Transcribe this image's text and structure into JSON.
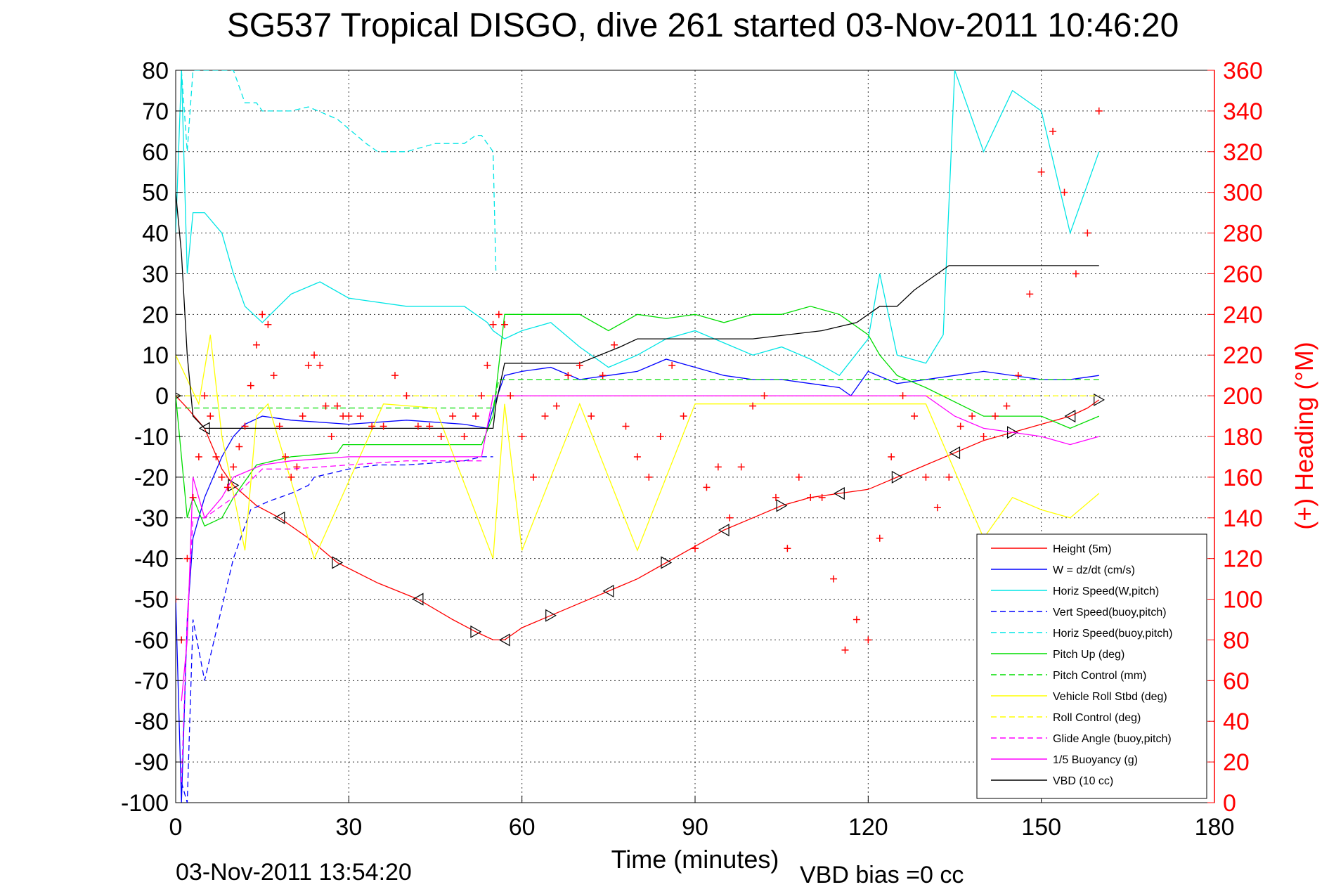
{
  "chart_data": {
    "type": "line",
    "title": "SG537 Tropical DISGO, dive 261 started 03-Nov-2011 10:46:20",
    "xlabel": "Time (minutes)",
    "ylabel_right": "(+) Heading (°M)",
    "footer_left": "03-Nov-2011 13:54:20",
    "footer_right": "VBD bias =0 cc",
    "xlim": [
      0,
      180
    ],
    "ylim": [
      -100,
      80
    ],
    "y2lim": [
      0,
      360
    ],
    "xticks": [
      "0",
      "30",
      "60",
      "90",
      "120",
      "150",
      "180"
    ],
    "yticks": [
      "80",
      "70",
      "60",
      "50",
      "40",
      "30",
      "20",
      "10",
      "0",
      "-10",
      "-20",
      "-30",
      "-40",
      "-50",
      "-60",
      "-70",
      "-80",
      "-90",
      "-100"
    ],
    "y2ticks": [
      "360",
      "340",
      "320",
      "300",
      "280",
      "260",
      "240",
      "220",
      "200",
      "180",
      "160",
      "140",
      "120",
      "100",
      "80",
      "60",
      "40",
      "20",
      "0"
    ],
    "grid": true,
    "legend_position": "bottom-right",
    "colors": {
      "height": "#ff0000",
      "w": "#0000ff",
      "horiz_w": "#00e5e5",
      "vert_buoy": "#0000ff",
      "horiz_buoy": "#00e5e5",
      "pitch_up": "#00dd00",
      "pitch_ctrl": "#00dd00",
      "roll": "#ffff00",
      "roll_ctrl": "#ffff00",
      "glide": "#ff00ff",
      "buoy": "#ff00ff",
      "vbd": "#000000",
      "heading": "#ff0000"
    },
    "series": [
      {
        "name": "Height (5m)",
        "key": "height",
        "style": "solid",
        "x": [
          0,
          2,
          5,
          8,
          10,
          14,
          18,
          23,
          28,
          35,
          42,
          48,
          52,
          55,
          57,
          60,
          65,
          70,
          75,
          80,
          85,
          90,
          95,
          100,
          105,
          110,
          115,
          120,
          125,
          130,
          135,
          140,
          145,
          150,
          155,
          158,
          160
        ],
        "y": [
          0,
          -3,
          -8,
          -18,
          -22,
          -27,
          -30,
          -35,
          -41,
          -46,
          -50,
          -55,
          -58,
          -60,
          -60,
          -57,
          -54,
          -51,
          -48,
          -45,
          -41,
          -37,
          -33,
          -30,
          -27,
          -25,
          -24,
          -23,
          -20,
          -17,
          -14,
          -11,
          -9,
          -7,
          -5,
          -3,
          -1
        ]
      },
      {
        "name": "W = dz/dt (cm/s)",
        "key": "w",
        "style": "solid",
        "x": [
          0,
          1,
          2,
          3,
          5,
          8,
          10,
          12,
          15,
          20,
          30,
          40,
          50,
          54,
          55,
          57,
          60,
          65,
          70,
          75,
          80,
          85,
          90,
          95,
          100,
          105,
          110,
          115,
          117,
          120,
          125,
          130,
          135,
          140,
          150,
          155,
          160
        ],
        "y": [
          -50,
          -100,
          -55,
          -35,
          -25,
          -15,
          -10,
          -7,
          -5,
          -6,
          -7,
          -6,
          -7,
          -8,
          -3,
          5,
          6,
          7,
          4,
          5,
          6,
          9,
          7,
          5,
          4,
          4,
          3,
          2,
          0,
          6,
          3,
          4,
          5,
          6,
          4,
          4,
          5
        ]
      },
      {
        "name": "Horiz Speed(W,pitch)",
        "key": "horiz_w",
        "style": "solid",
        "x": [
          0,
          1,
          2,
          3,
          5,
          8,
          10,
          12,
          15,
          20,
          25,
          30,
          40,
          50,
          54,
          55,
          57,
          60,
          65,
          70,
          75,
          80,
          85,
          90,
          95,
          100,
          105,
          110,
          115,
          120,
          122,
          125,
          130,
          133,
          135,
          140,
          145,
          150,
          155,
          160
        ],
        "y": [
          40,
          80,
          30,
          45,
          45,
          40,
          30,
          22,
          18,
          25,
          28,
          24,
          22,
          22,
          18,
          16,
          14,
          16,
          18,
          12,
          7,
          10,
          14,
          16,
          13,
          10,
          12,
          9,
          5,
          14,
          30,
          10,
          8,
          15,
          80,
          60,
          75,
          70,
          40,
          60
        ]
      },
      {
        "name": "Vert Speed(buoy,pitch)",
        "key": "vert_buoy",
        "style": "dashed",
        "x": [
          1,
          2,
          3,
          5,
          8,
          10,
          13,
          16,
          20,
          23,
          24,
          30,
          35,
          40,
          50,
          53,
          55
        ],
        "y": [
          -95,
          -100,
          -55,
          -70,
          -52,
          -40,
          -28,
          -26,
          -24,
          -22,
          -20,
          -18,
          -17,
          -17,
          -16,
          -15,
          -15
        ]
      },
      {
        "name": "Horiz Speed(buoy,pitch)",
        "key": "horiz_buoy",
        "style": "dashed",
        "x": [
          1,
          2,
          3,
          10,
          12,
          14,
          15,
          20,
          23,
          28,
          33,
          35,
          40,
          45,
          50,
          52,
          53,
          55,
          55.5
        ],
        "y": [
          80,
          60,
          80,
          80,
          72,
          72,
          70,
          70,
          71,
          68,
          62,
          60,
          60,
          62,
          62,
          64,
          64,
          60,
          30
        ]
      },
      {
        "name": "Pitch Up (deg)",
        "key": "pitch_up",
        "style": "solid",
        "x": [
          0,
          2,
          3,
          5,
          8,
          10,
          14,
          20,
          28,
          29,
          35,
          45,
          53,
          55,
          57,
          60,
          65,
          70,
          75,
          80,
          85,
          90,
          95,
          100,
          105,
          110,
          115,
          120,
          122,
          125,
          130,
          140,
          150,
          155,
          160
        ],
        "y": [
          0,
          -30,
          -25,
          -32,
          -30,
          -25,
          -17,
          -15,
          -14,
          -12,
          -12,
          -12,
          -12,
          -5,
          20,
          20,
          20,
          20,
          16,
          20,
          19,
          20,
          18,
          20,
          20,
          22,
          20,
          15,
          10,
          5,
          2,
          -5,
          -5,
          -8,
          -5
        ]
      },
      {
        "name": "Pitch Control (mm)",
        "key": "pitch_ctrl",
        "style": "dashed",
        "x": [
          0,
          5,
          55,
          56,
          160
        ],
        "y": [
          -3,
          -3,
          -3,
          4,
          4
        ]
      },
      {
        "name": "Vehicle Roll Stbd (deg)",
        "key": "roll",
        "style": "solid",
        "x": [
          0,
          4,
          6,
          8,
          12,
          14,
          16,
          24,
          36,
          45,
          55,
          57,
          60,
          70,
          80,
          90,
          100,
          110,
          120,
          130,
          140,
          145,
          150,
          155,
          160
        ],
        "y": [
          10,
          -2,
          15,
          -10,
          -38,
          -5,
          -2,
          -40,
          -2,
          -3,
          -40,
          -2,
          -38,
          -2,
          -38,
          -2,
          -2,
          -2,
          -2,
          -2,
          -35,
          -25,
          -28,
          -30,
          -24
        ]
      },
      {
        "name": "Roll Control (deg)",
        "key": "roll_ctrl",
        "style": "dashed",
        "x": [
          0,
          160
        ],
        "y": [
          0,
          0
        ]
      },
      {
        "name": "Glide Angle (buoy,pitch)",
        "key": "glide",
        "style": "dashed",
        "x": [
          1,
          2,
          3,
          5,
          10,
          15,
          20,
          30,
          40,
          50,
          53
        ],
        "y": [
          -95,
          -55,
          -30,
          -30,
          -25,
          -18,
          -18,
          -17,
          -16,
          -16,
          -16
        ]
      },
      {
        "name": "1/5 Buoyancy (g)",
        "key": "buoy",
        "style": "solid",
        "x": [
          1,
          2,
          3,
          5,
          8,
          10,
          15,
          20,
          30,
          40,
          53,
          55,
          60,
          130,
          135,
          140,
          150,
          155,
          160
        ],
        "y": [
          -75,
          -60,
          -20,
          -30,
          -25,
          -20,
          -17,
          -16,
          -15,
          -15,
          -15,
          0,
          0,
          0,
          -5,
          -8,
          -10,
          -12,
          -10
        ]
      },
      {
        "name": "VBD (10 cc)",
        "key": "vbd",
        "style": "solid",
        "x": [
          0,
          1,
          2,
          3,
          5,
          10,
          20,
          30,
          45,
          55,
          55.5,
          57,
          70,
          77,
          80,
          90,
          100,
          112,
          118,
          122,
          125,
          128,
          130,
          132,
          134,
          136,
          160
        ],
        "y": [
          50,
          35,
          10,
          -5,
          -8,
          -8,
          -8,
          -8,
          -8,
          -8,
          -2,
          8,
          8,
          12,
          14,
          14,
          14,
          16,
          18,
          22,
          22,
          26,
          28,
          30,
          32,
          32,
          32
        ]
      },
      {
        "name": "Heading",
        "key": "heading",
        "style": "markers",
        "x": [
          0,
          1,
          2,
          3,
          4,
          5,
          6,
          7,
          8,
          9,
          10,
          11,
          12,
          13,
          14,
          15,
          16,
          17,
          18,
          19,
          20,
          21,
          22,
          23,
          24,
          25,
          26,
          27,
          28,
          29,
          30,
          32,
          34,
          36,
          38,
          40,
          42,
          44,
          46,
          48,
          50,
          52,
          53,
          54,
          55,
          56,
          57,
          58,
          60,
          62,
          64,
          66,
          68,
          70,
          72,
          74,
          76,
          78,
          80,
          82,
          84,
          86,
          88,
          90,
          92,
          94,
          96,
          98,
          100,
          102,
          104,
          106,
          108,
          110,
          112,
          114,
          116,
          118,
          120,
          122,
          124,
          126,
          128,
          130,
          132,
          134,
          136,
          138,
          140,
          142,
          144,
          146,
          148,
          150,
          152,
          154,
          156,
          158,
          160
        ],
        "y": [
          100,
          80,
          120,
          150,
          170,
          200,
          190,
          170,
          160,
          155,
          165,
          175,
          185,
          205,
          225,
          240,
          235,
          210,
          185,
          170,
          160,
          165,
          190,
          215,
          220,
          215,
          195,
          180,
          195,
          190,
          190,
          190,
          185,
          185,
          210,
          200,
          185,
          185,
          180,
          190,
          180,
          190,
          200,
          215,
          235,
          240,
          235,
          200,
          180,
          160,
          190,
          195,
          210,
          215,
          190,
          210,
          225,
          185,
          170,
          160,
          180,
          215,
          190,
          125,
          155,
          165,
          140,
          165,
          195,
          200,
          150,
          125,
          160,
          150,
          150,
          110,
          75,
          90,
          80,
          130,
          170,
          200,
          190,
          160,
          145,
          160,
          185,
          190,
          180,
          190,
          195,
          210,
          250,
          310,
          330,
          300,
          260,
          280,
          340
        ]
      }
    ]
  }
}
